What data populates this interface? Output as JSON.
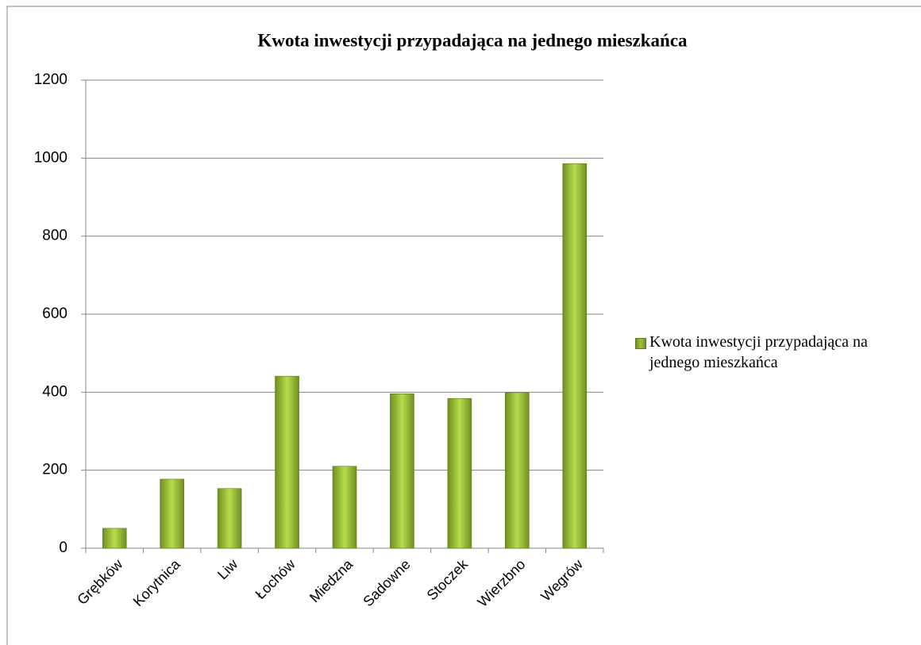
{
  "chart_data": {
    "type": "bar",
    "title": "Kwota inwestycji przypadająca na jednego mieszkańca",
    "categories": [
      "Grębków",
      "Korytnica",
      "Liw",
      "Łochów",
      "Miedzna",
      "Sadowne",
      "Stoczek",
      "Wierzbno",
      "Wegrów"
    ],
    "series": [
      {
        "name": "Kwota inwestycji przypadająca na jednego mieszkańca",
        "color": "#9bc43a",
        "values": [
          51,
          177,
          153,
          441,
          210,
          396,
          384,
          399,
          986
        ]
      }
    ],
    "ylim": [
      0,
      1200
    ],
    "yticks": [
      0,
      200,
      400,
      600,
      800,
      1000,
      1200
    ],
    "grid": true,
    "legend": "right"
  }
}
